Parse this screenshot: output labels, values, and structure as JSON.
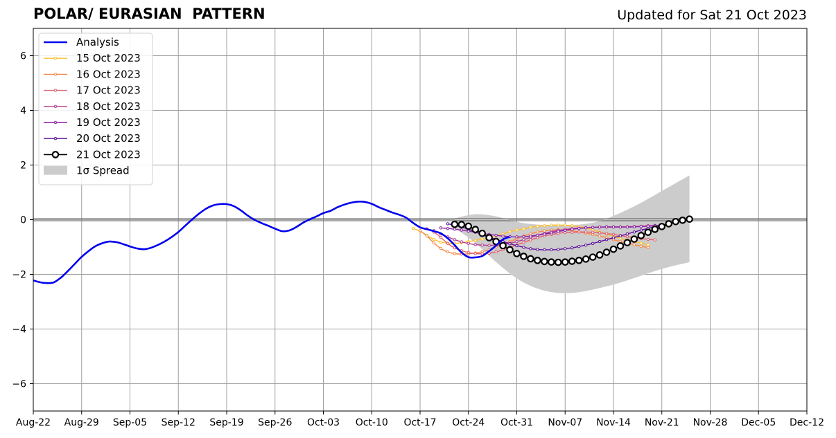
{
  "chart_data": {
    "type": "line",
    "title": "POLAR/ EURASIAN  PATTERN",
    "subtitle": "Updated for Sat 21 Oct 2023",
    "xlabel": "",
    "ylabel": "",
    "xlim": [
      "2023-08-22",
      "2023-12-12"
    ],
    "ylim": [
      -7,
      7
    ],
    "x_ticks": [
      "Aug-22",
      "Aug-29",
      "Sep-05",
      "Sep-12",
      "Sep-19",
      "Sep-26",
      "Oct-03",
      "Oct-10",
      "Oct-17",
      "Oct-24",
      "Oct-31",
      "Nov-07",
      "Nov-14",
      "Nov-21",
      "Nov-28",
      "Dec-05",
      "Dec-12"
    ],
    "y_ticks": [
      6,
      4,
      2,
      0,
      -2,
      -4,
      -6
    ],
    "y_tick_labels": [
      "6",
      "4",
      "2",
      "0",
      "−2",
      "−4",
      "−6"
    ],
    "grid": true,
    "legend_position": "top-left",
    "analysis": {
      "name": "Analysis",
      "color": "#0000ee",
      "start": "2023-08-22",
      "values": [
        -2.22,
        -2.29,
        -2.32,
        -2.29,
        -2.12,
        -1.88,
        -1.62,
        -1.36,
        -1.15,
        -0.97,
        -0.86,
        -0.8,
        -0.82,
        -0.89,
        -0.98,
        -1.05,
        -1.08,
        -1.03,
        -0.93,
        -0.8,
        -0.64,
        -0.45,
        -0.22,
        0.01,
        0.22,
        0.4,
        0.52,
        0.57,
        0.57,
        0.5,
        0.35,
        0.16,
        0.0,
        -0.12,
        -0.22,
        -0.33,
        -0.42,
        -0.4,
        -0.28,
        -0.12,
        0.01,
        0.12,
        0.24,
        0.32,
        0.45,
        0.55,
        0.62,
        0.66,
        0.65,
        0.58,
        0.46,
        0.36,
        0.26,
        0.18,
        0.07,
        -0.12,
        -0.28,
        -0.35,
        -0.42,
        -0.5,
        -0.68,
        -0.93,
        -1.2,
        -1.37,
        -1.38,
        -1.33,
        -1.15,
        -0.95,
        -0.72,
        -0.63
      ]
    },
    "forecasts": [
      {
        "name": "15 Oct 2023",
        "color": "#fcc12e",
        "start": "2023-10-16",
        "values": [
          -0.32,
          -0.42,
          -0.58,
          -0.72,
          -0.82,
          -0.86,
          -0.87,
          -0.84,
          -0.8,
          -0.76,
          -0.71,
          -0.66,
          -0.59,
          -0.52,
          -0.44,
          -0.38,
          -0.33,
          -0.28,
          -0.24,
          -0.22,
          -0.2,
          -0.2,
          -0.2,
          -0.22,
          -0.25,
          -0.3,
          -0.37,
          -0.45,
          -0.53,
          -0.61,
          -0.68,
          -0.74,
          -0.8,
          -0.86,
          -0.92
        ]
      },
      {
        "name": "16 Oct 2023",
        "color": "#f7894a",
        "start": "2023-10-17",
        "values": [
          -0.4,
          -0.6,
          -0.85,
          -1.05,
          -1.18,
          -1.24,
          -1.26,
          -1.25,
          -1.22,
          -1.17,
          -1.1,
          -1.0,
          -0.9,
          -0.8,
          -0.7,
          -0.6,
          -0.52,
          -0.45,
          -0.41,
          -0.38,
          -0.37,
          -0.38,
          -0.41,
          -0.45,
          -0.49,
          -0.54,
          -0.6,
          -0.66,
          -0.73,
          -0.8,
          -0.86,
          -0.92,
          -0.97,
          -1.02
        ]
      },
      {
        "name": "17 Oct 2023",
        "color": "#e05c6d",
        "start": "2023-10-18",
        "values": [
          -0.33,
          -0.45,
          -0.65,
          -0.87,
          -1.03,
          -1.13,
          -1.2,
          -1.24,
          -1.25,
          -1.23,
          -1.18,
          -1.1,
          -1.01,
          -0.92,
          -0.83,
          -0.74,
          -0.66,
          -0.59,
          -0.54,
          -0.5,
          -0.47,
          -0.46,
          -0.45,
          -0.45,
          -0.46,
          -0.48,
          -0.51,
          -0.54,
          -0.58,
          -0.62,
          -0.66,
          -0.69,
          -0.72,
          -0.74
        ]
      },
      {
        "name": "18 Oct 2023",
        "color": "#b53b92",
        "start": "2023-10-19",
        "values": [
          -0.4,
          -0.52,
          -0.63,
          -0.73,
          -0.81,
          -0.87,
          -0.91,
          -0.93,
          -0.94,
          -0.93,
          -0.9,
          -0.86,
          -0.8,
          -0.73,
          -0.65,
          -0.57,
          -0.5,
          -0.44,
          -0.39,
          -0.36,
          -0.33,
          -0.31,
          -0.29,
          -0.28,
          -0.27,
          -0.26,
          -0.26,
          -0.26,
          -0.26,
          -0.25,
          -0.24,
          -0.22,
          -0.21,
          -0.2
        ]
      },
      {
        "name": "19 Oct 2023",
        "color": "#8a1fa3",
        "start": "2023-10-20",
        "values": [
          -0.3,
          -0.32,
          -0.35,
          -0.38,
          -0.42,
          -0.46,
          -0.5,
          -0.54,
          -0.57,
          -0.6,
          -0.62,
          -0.63,
          -0.62,
          -0.6,
          -0.57,
          -0.53,
          -0.48,
          -0.43,
          -0.39,
          -0.35,
          -0.32,
          -0.3,
          -0.28,
          -0.27,
          -0.27,
          -0.27,
          -0.27,
          -0.27,
          -0.26,
          -0.25,
          -0.24,
          -0.22,
          -0.2,
          -0.18
        ]
      },
      {
        "name": "20 Oct 2023",
        "color": "#5a0f9a",
        "start": "2023-10-21",
        "values": [
          -0.15,
          -0.2,
          -0.27,
          -0.35,
          -0.45,
          -0.55,
          -0.64,
          -0.72,
          -0.8,
          -0.88,
          -0.95,
          -1.01,
          -1.06,
          -1.09,
          -1.1,
          -1.1,
          -1.09,
          -1.06,
          -1.03,
          -0.98,
          -0.93,
          -0.87,
          -0.8,
          -0.73,
          -0.66,
          -0.59,
          -0.52,
          -0.45,
          -0.38,
          -0.32,
          -0.26,
          -0.21,
          -0.16,
          -0.12
        ]
      },
      {
        "name": "21 Oct 2023",
        "color": "#000000",
        "start": "2023-10-22",
        "values": [
          -0.17,
          -0.18,
          -0.24,
          -0.36,
          -0.5,
          -0.66,
          -0.8,
          -0.95,
          -1.1,
          -1.24,
          -1.34,
          -1.43,
          -1.49,
          -1.53,
          -1.55,
          -1.56,
          -1.55,
          -1.52,
          -1.49,
          -1.44,
          -1.37,
          -1.29,
          -1.19,
          -1.08,
          -0.96,
          -0.84,
          -0.71,
          -0.58,
          -0.46,
          -0.35,
          -0.25,
          -0.15,
          -0.07,
          -0.02,
          0.02
        ]
      }
    ],
    "spread": {
      "name": "1σ Spread",
      "color": "#cccccc",
      "x": [
        "2023-10-22",
        "2023-10-25",
        "2023-10-28",
        "2023-10-31",
        "2023-11-03",
        "2023-11-06",
        "2023-11-09",
        "2023-11-12",
        "2023-11-15",
        "2023-11-18",
        "2023-11-21",
        "2023-11-25"
      ],
      "upper": [
        0.05,
        0.2,
        0.12,
        -0.08,
        -0.18,
        -0.2,
        -0.18,
        -0.05,
        0.25,
        0.62,
        1.05,
        1.62
      ],
      "lower": [
        -0.3,
        -0.85,
        -1.55,
        -2.15,
        -2.52,
        -2.68,
        -2.65,
        -2.5,
        -2.3,
        -2.05,
        -1.8,
        -1.55
      ]
    },
    "legend_entries": [
      "Analysis",
      "15 Oct 2023",
      "16 Oct 2023",
      "17 Oct 2023",
      "18 Oct 2023",
      "19 Oct 2023",
      "20 Oct 2023",
      "21 Oct 2023",
      "1σ Spread"
    ]
  }
}
